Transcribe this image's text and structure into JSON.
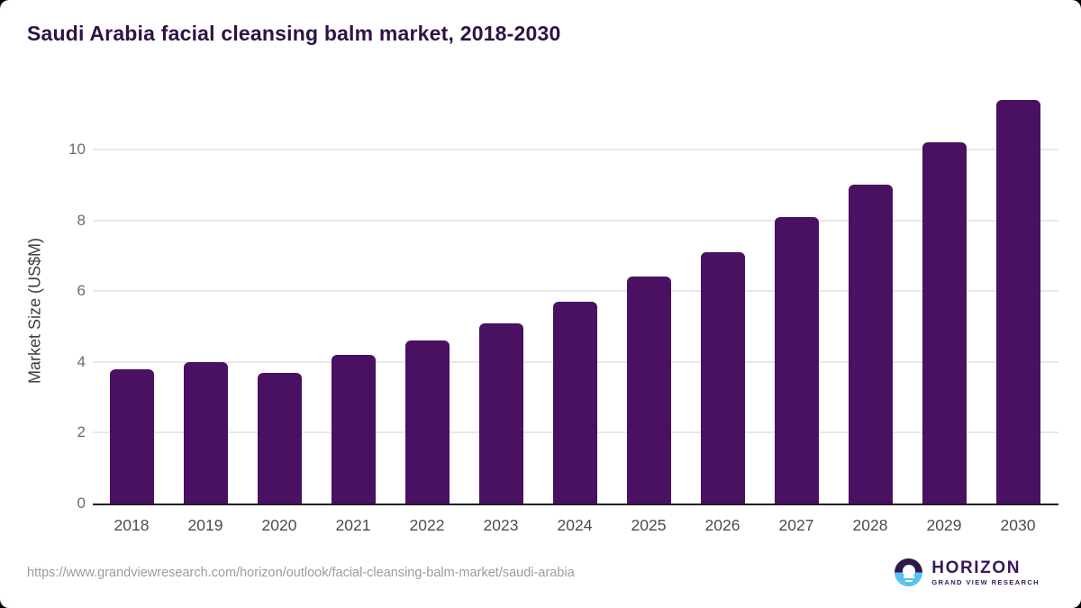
{
  "title": "Saudi Arabia facial cleansing balm market, 2018-2030",
  "footer": {
    "source_url": "https://www.grandviewresearch.com/horizon/outlook/facial-cleansing-balm-market/saudi-arabia",
    "logo": {
      "name": "HORIZON",
      "subtitle": "GRAND VIEW RESEARCH"
    }
  },
  "chart_data": {
    "type": "bar",
    "title": "Saudi Arabia facial cleansing balm market, 2018-2030",
    "categories": [
      "2018",
      "2019",
      "2020",
      "2021",
      "2022",
      "2023",
      "2024",
      "2025",
      "2026",
      "2027",
      "2028",
      "2029",
      "2030"
    ],
    "values": [
      3.8,
      4.0,
      3.7,
      4.2,
      4.6,
      5.1,
      5.7,
      6.4,
      7.1,
      8.1,
      9.0,
      10.2,
      11.4
    ],
    "xlabel": "",
    "ylabel": "Market Size (US$M)",
    "ylim": [
      0,
      12
    ],
    "yticks": [
      0,
      2,
      4,
      6,
      8,
      10
    ],
    "grid": true,
    "legend": false
  },
  "colors": {
    "bar": "#4a1061",
    "title": "#2f1245",
    "grid": "#e8e8e8",
    "axis": "#1f1f1f",
    "tick_label": "#6b6b6b",
    "x_label": "#4c4c4c",
    "axis_title": "#3d3d3d",
    "url": "#9c9c9c",
    "logo_purple": "#2e1a47",
    "logo_blue": "#58c3f0",
    "logo_text": "#3a175c"
  }
}
